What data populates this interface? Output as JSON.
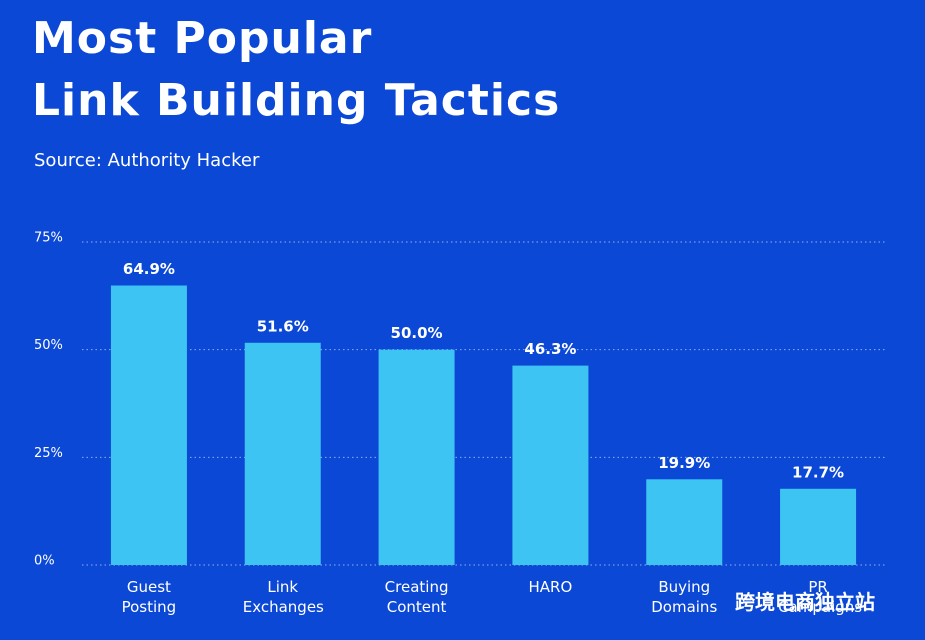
{
  "chart_data": {
    "type": "bar",
    "title": [
      "Most Popular",
      "Link Building Tactics"
    ],
    "subtitle": "Source: Authority Hacker",
    "categories": [
      "Guest Posting",
      "Link Exchanges",
      "Creating Content",
      "HARO",
      "Buying Domains",
      "PR Campaigns"
    ],
    "values": [
      64.9,
      51.6,
      50.0,
      46.3,
      19.9,
      17.7
    ],
    "value_labels": [
      "64.9%",
      "51.6%",
      "50.0%",
      "46.3%",
      "19.9%",
      "17.7%"
    ],
    "color": "#3ec4f2",
    "ylim": [
      0,
      75
    ],
    "yticks": [
      {
        "value": 0,
        "label": "0%"
      },
      {
        "value": 25,
        "label": "25%"
      },
      {
        "value": 50,
        "label": "50%"
      },
      {
        "value": 75,
        "label": "75%"
      }
    ],
    "grid": true,
    "watermark": "跨境电商独立站"
  }
}
